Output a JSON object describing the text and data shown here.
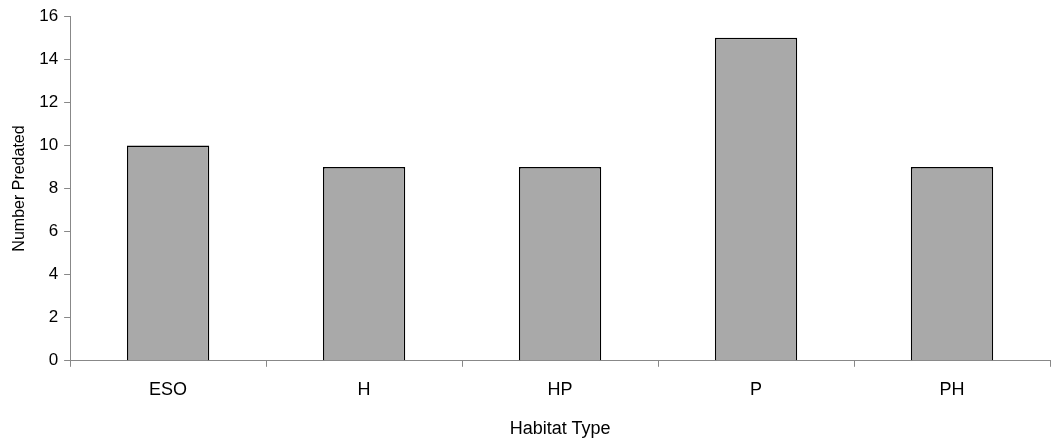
{
  "chart_data": {
    "type": "bar",
    "xlabel": "Habitat Type",
    "ylabel": "Number Predated",
    "categories": [
      "ESO",
      "H",
      "HP",
      "P",
      "PH"
    ],
    "values": [
      10,
      9,
      9,
      15,
      9
    ],
    "color": "#a9a9a9",
    "ylim": [
      0,
      16
    ],
    "yticks": [
      0,
      2,
      4,
      6,
      8,
      10,
      12,
      14,
      16
    ],
    "grid": false
  }
}
